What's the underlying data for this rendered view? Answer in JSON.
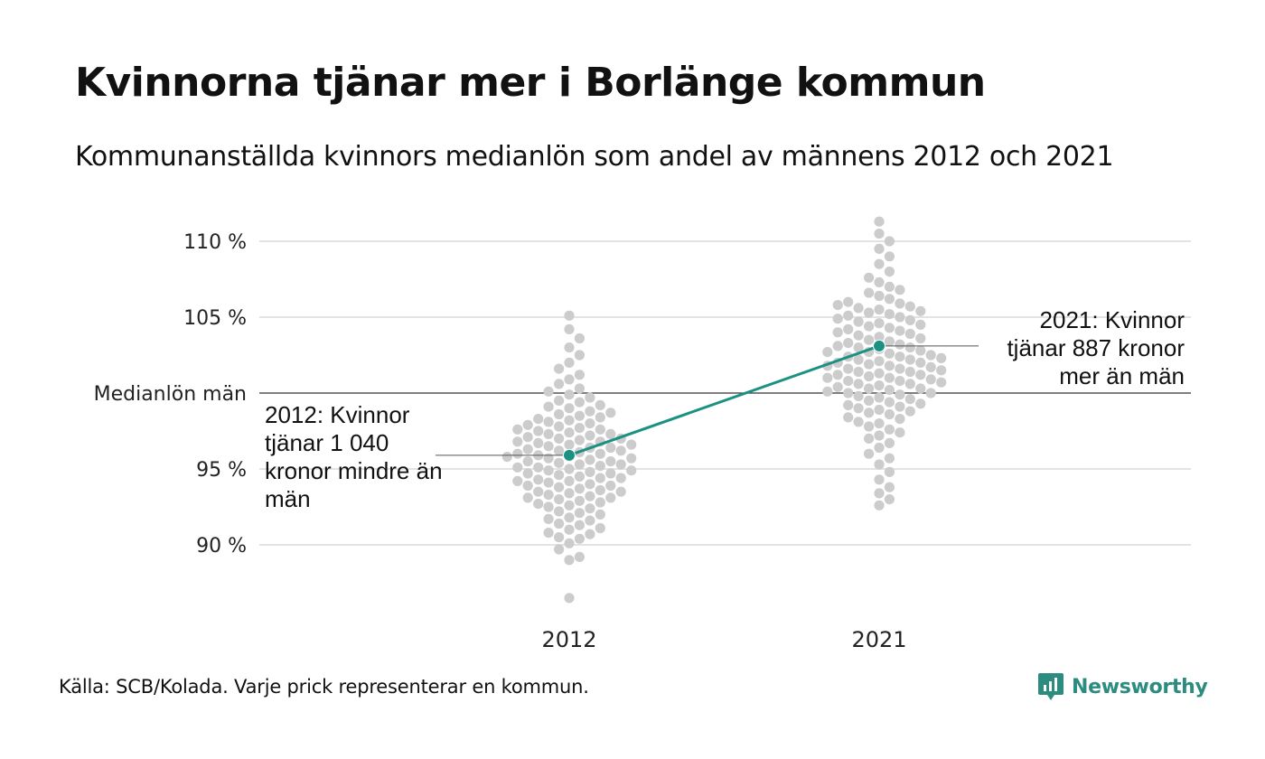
{
  "title": "Kvinnorna tjänar mer i Borlänge kommun",
  "subtitle": "Kommunanställda kvinnors medianlön som andel av männens 2012 och 2021",
  "source": "Källa: SCB/Kolada. Varje prick representerar en kommun.",
  "brand": "Newsworthy",
  "colors": {
    "highlight": "#1a9181",
    "dots": "#cccccc",
    "grid": "#e3e3e3",
    "reference": "#333333",
    "brand": "#2b8c7f"
  },
  "chart_data": {
    "type": "scatter",
    "title": "Kvinnorna tjänar mer i Borlänge kommun",
    "subtitle": "Kommunanställda kvinnors medianlön som andel av männens 2012 och 2021",
    "categories": [
      "2012",
      "2021"
    ],
    "ylim": [
      86,
      111
    ],
    "yticks": [
      {
        "value": 110,
        "label": "110 %"
      },
      {
        "value": 105,
        "label": "105 %"
      },
      {
        "value": 100,
        "label": "Medianlön män"
      },
      {
        "value": 95,
        "label": "95 %"
      },
      {
        "value": 90,
        "label": "90 %"
      }
    ],
    "grid": true,
    "reference_line": {
      "value": 100
    },
    "distribution_note": "Varje prick representerar en kommun.",
    "highlight": {
      "name": "Borlänge",
      "values": [
        95.9,
        103.1
      ],
      "annotations": [
        "2012: Kvinnor tjänar 1 040 kronor mindre än män",
        "2021: Kvinnor tjänar 887 kronor mer än män"
      ]
    },
    "series": [
      {
        "values": [
          86.5,
          89.0,
          89.2,
          89.7,
          90.1,
          90.4,
          90.5,
          90.7,
          90.8,
          91.0,
          91.1,
          91.3,
          91.4,
          91.6,
          91.7,
          91.8,
          92.0,
          92.1,
          92.2,
          92.4,
          92.5,
          92.6,
          92.7,
          92.8,
          92.9,
          93.0,
          93.1,
          93.1,
          93.2,
          93.3,
          93.4,
          93.5,
          93.5,
          93.6,
          93.7,
          93.8,
          93.9,
          93.9,
          94.0,
          94.1,
          94.2,
          94.2,
          94.3,
          94.4,
          94.4,
          94.5,
          94.6,
          94.7,
          94.7,
          94.8,
          94.9,
          94.9,
          95.0,
          95.1,
          95.1,
          95.2,
          95.3,
          95.3,
          95.4,
          95.5,
          95.5,
          95.6,
          95.7,
          95.7,
          95.8,
          95.8,
          95.9,
          96.0,
          96.0,
          96.1,
          96.2,
          96.2,
          96.3,
          96.4,
          96.4,
          96.5,
          96.6,
          96.6,
          96.7,
          96.8,
          96.8,
          96.9,
          97.0,
          97.0,
          97.1,
          97.2,
          97.3,
          97.3,
          97.4,
          97.5,
          97.6,
          97.6,
          97.7,
          97.8,
          97.9,
          98.0,
          98.1,
          98.2,
          98.3,
          98.4,
          98.5,
          98.6,
          98.7,
          98.8,
          99.0,
          99.1,
          99.2,
          99.4,
          99.5,
          99.7,
          99.9,
          100.1,
          100.3,
          100.6,
          100.9,
          101.2,
          101.6,
          102.0,
          102.5,
          103.0,
          103.6,
          104.2,
          105.1
        ]
      },
      {
        "values": [
          92.6,
          93.0,
          93.4,
          93.8,
          94.3,
          94.8,
          95.3,
          95.7,
          96.0,
          96.4,
          96.7,
          97.0,
          97.2,
          97.4,
          97.6,
          97.8,
          98.0,
          98.1,
          98.3,
          98.4,
          98.6,
          98.7,
          98.8,
          98.9,
          99.0,
          99.1,
          99.2,
          99.3,
          99.4,
          99.5,
          99.6,
          99.7,
          99.8,
          99.9,
          100.0,
          100.0,
          100.1,
          100.2,
          100.3,
          100.3,
          100.4,
          100.5,
          100.6,
          100.6,
          100.7,
          100.8,
          100.8,
          100.9,
          101.0,
          101.0,
          101.1,
          101.2,
          101.2,
          101.3,
          101.4,
          101.4,
          101.5,
          101.6,
          101.6,
          101.7,
          101.8,
          101.8,
          101.9,
          102.0,
          102.0,
          102.1,
          102.2,
          102.2,
          102.3,
          102.4,
          102.4,
          102.5,
          102.6,
          102.7,
          102.7,
          102.8,
          102.9,
          103.0,
          103.0,
          103.1,
          103.2,
          103.3,
          103.4,
          103.5,
          103.6,
          103.7,
          103.8,
          103.9,
          104.0,
          104.1,
          104.2,
          104.3,
          104.4,
          104.5,
          104.6,
          104.7,
          104.8,
          104.9,
          105.0,
          105.1,
          105.2,
          105.3,
          105.4,
          105.5,
          105.6,
          105.7,
          105.8,
          105.9,
          106.0,
          106.2,
          106.4,
          106.6,
          106.8,
          107.0,
          107.3,
          107.6,
          108.0,
          108.5,
          109.0,
          109.5,
          110.0,
          110.5,
          111.3
        ]
      }
    ]
  }
}
